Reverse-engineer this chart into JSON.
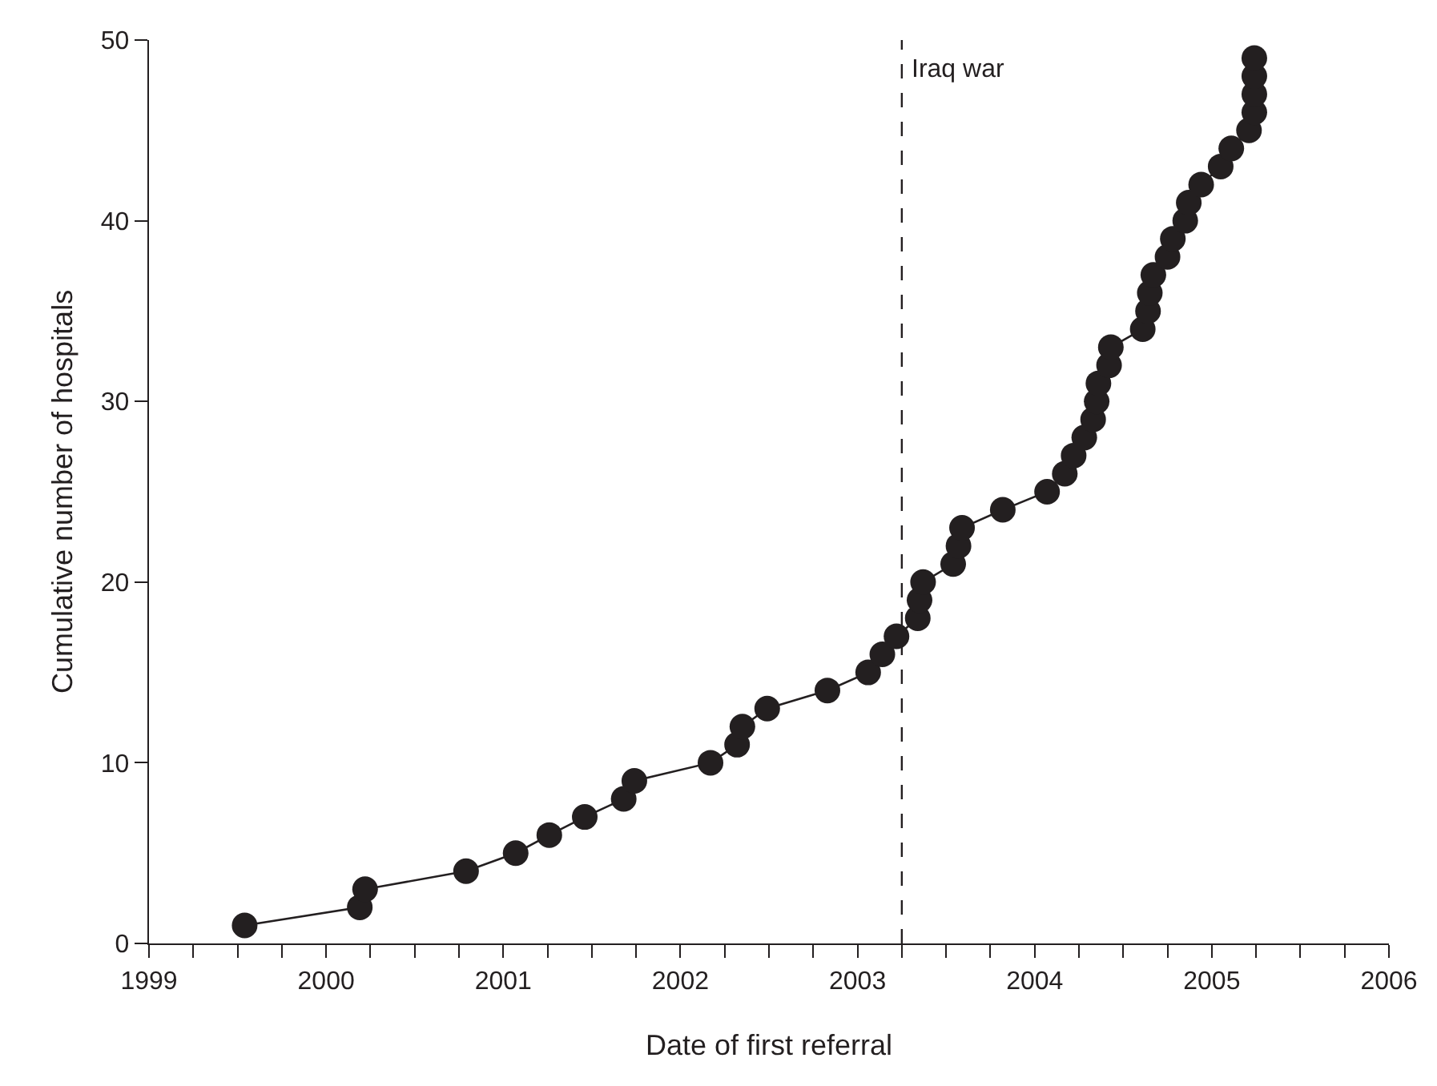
{
  "chart_data": {
    "type": "line",
    "xlabel": "Date of first referral",
    "ylabel": "Cumulative number of hospitals",
    "x": [
      1999.54,
      2000.19,
      2000.22,
      2000.79,
      2001.07,
      2001.26,
      2001.46,
      2001.68,
      2001.74,
      2002.17,
      2002.32,
      2002.35,
      2002.49,
      2002.83,
      2003.06,
      2003.14,
      2003.22,
      2003.34,
      2003.35,
      2003.37,
      2003.54,
      2003.57,
      2003.59,
      2003.82,
      2004.07,
      2004.17,
      2004.22,
      2004.28,
      2004.33,
      2004.35,
      2004.36,
      2004.42,
      2004.43,
      2004.61,
      2004.64,
      2004.65,
      2004.67,
      2004.75,
      2004.78,
      2004.85,
      2004.87,
      2004.94,
      2005.05,
      2005.11,
      2005.21,
      2005.24,
      2005.24,
      2005.24,
      2005.24
    ],
    "series": [
      {
        "color": "#231f20",
        "values": [
          1,
          2,
          3,
          4,
          5,
          6,
          7,
          8,
          9,
          10,
          11,
          12,
          13,
          14,
          15,
          16,
          17,
          18,
          19,
          20,
          21,
          22,
          23,
          24,
          25,
          26,
          27,
          28,
          29,
          30,
          31,
          32,
          33,
          34,
          35,
          36,
          37,
          38,
          39,
          40,
          41,
          42,
          43,
          44,
          45,
          46,
          47,
          48,
          49
        ]
      }
    ],
    "marker": "circle",
    "line_style": "solid",
    "xlim": [
      1999,
      2006
    ],
    "xticks": [
      1999,
      {
        "value": 1999.25,
        "label": null
      },
      {
        "value": 1999.5,
        "label": null
      },
      {
        "value": 1999.75,
        "label": null
      },
      2000,
      {
        "value": 2000.25,
        "label": null
      },
      {
        "value": 2000.5,
        "label": null
      },
      {
        "value": 2000.75,
        "label": null
      },
      2001,
      {
        "value": 2001.25,
        "label": null
      },
      {
        "value": 2001.5,
        "label": null
      },
      {
        "value": 2001.75,
        "label": null
      },
      2002,
      {
        "value": 2002.25,
        "label": null
      },
      {
        "value": 2002.5,
        "label": null
      },
      {
        "value": 2002.75,
        "label": null
      },
      2003,
      {
        "value": 2003.25,
        "label": null
      },
      {
        "value": 2003.5,
        "label": null
      },
      {
        "value": 2003.75,
        "label": null
      },
      2004,
      {
        "value": 2004.25,
        "label": null
      },
      {
        "value": 2004.5,
        "label": null
      },
      {
        "value": 2004.75,
        "label": null
      },
      2005,
      {
        "value": 2005.25,
        "label": null
      },
      {
        "value": 2005.5,
        "label": null
      },
      {
        "value": 2005.75,
        "label": null
      },
      2006
    ],
    "ylim": [
      0,
      50
    ],
    "yticks": [
      0,
      10,
      20,
      30,
      40,
      50
    ],
    "ref_lines": [
      {
        "axis": "x",
        "value": 2003.25,
        "label": "Iraq war",
        "color": "#231f20",
        "line_style": "dashed"
      }
    ]
  }
}
